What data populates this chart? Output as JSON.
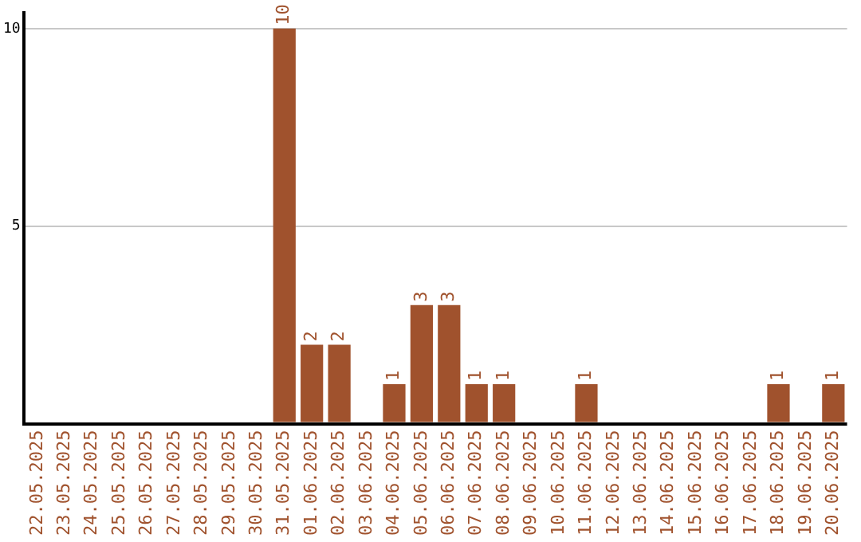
{
  "chart_data": {
    "type": "bar",
    "categories": [
      "22.05.2025",
      "23.05.2025",
      "24.05.2025",
      "25.05.2025",
      "26.05.2025",
      "27.05.2025",
      "28.05.2025",
      "29.05.2025",
      "30.05.2025",
      "31.05.2025",
      "01.06.2025",
      "02.06.2025",
      "03.06.2025",
      "04.06.2025",
      "05.06.2025",
      "06.06.2025",
      "07.06.2025",
      "08.06.2025",
      "09.06.2025",
      "10.06.2025",
      "11.06.2025",
      "12.06.2025",
      "13.06.2025",
      "14.06.2025",
      "15.06.2025",
      "16.06.2025",
      "17.06.2025",
      "18.06.2025",
      "19.06.2025",
      "20.06.2025"
    ],
    "values": [
      0,
      0,
      0,
      0,
      0,
      0,
      0,
      0,
      0,
      10,
      2,
      2,
      0,
      1,
      3,
      3,
      1,
      1,
      0,
      0,
      1,
      0,
      0,
      0,
      0,
      0,
      0,
      1,
      0,
      1
    ],
    "value_labels": [
      null,
      null,
      null,
      null,
      null,
      null,
      null,
      null,
      null,
      "10",
      "2",
      "2",
      null,
      "1",
      "3",
      "3",
      "1",
      "1",
      null,
      null,
      "1",
      null,
      null,
      null,
      null,
      null,
      null,
      "1",
      null,
      "1"
    ],
    "color": "#a0522d",
    "ylim": [
      0,
      10.4
    ],
    "yticks": [
      5,
      10
    ],
    "grid": "y",
    "legend": false
  }
}
